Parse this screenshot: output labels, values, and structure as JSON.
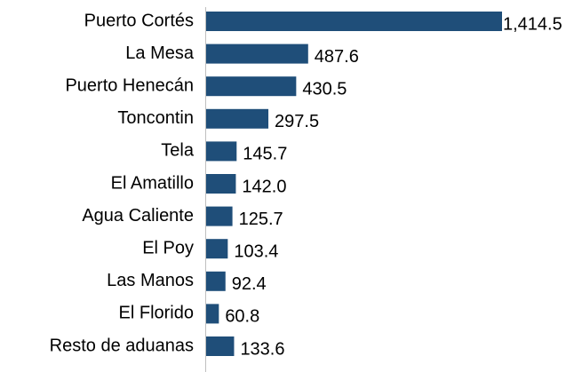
{
  "chart_data": {
    "type": "bar",
    "orientation": "horizontal",
    "categories": [
      "Puerto Cortés",
      "La Mesa",
      "Puerto Henecán",
      "Toncontin",
      "Tela",
      "El Amatillo",
      "Agua Caliente",
      "El Poy",
      "Las Manos",
      "El Florido",
      "Resto de aduanas"
    ],
    "values": [
      1414.5,
      487.6,
      430.5,
      297.5,
      145.7,
      142.0,
      125.7,
      103.4,
      92.4,
      60.8,
      133.6
    ],
    "value_labels": [
      "1,414.5",
      "487.6",
      "430.5",
      "297.5",
      "145.7",
      "142.0",
      "125.7",
      "103.4",
      "92.4",
      "60.8",
      "133.6"
    ],
    "color": "#1f4e79"
  }
}
